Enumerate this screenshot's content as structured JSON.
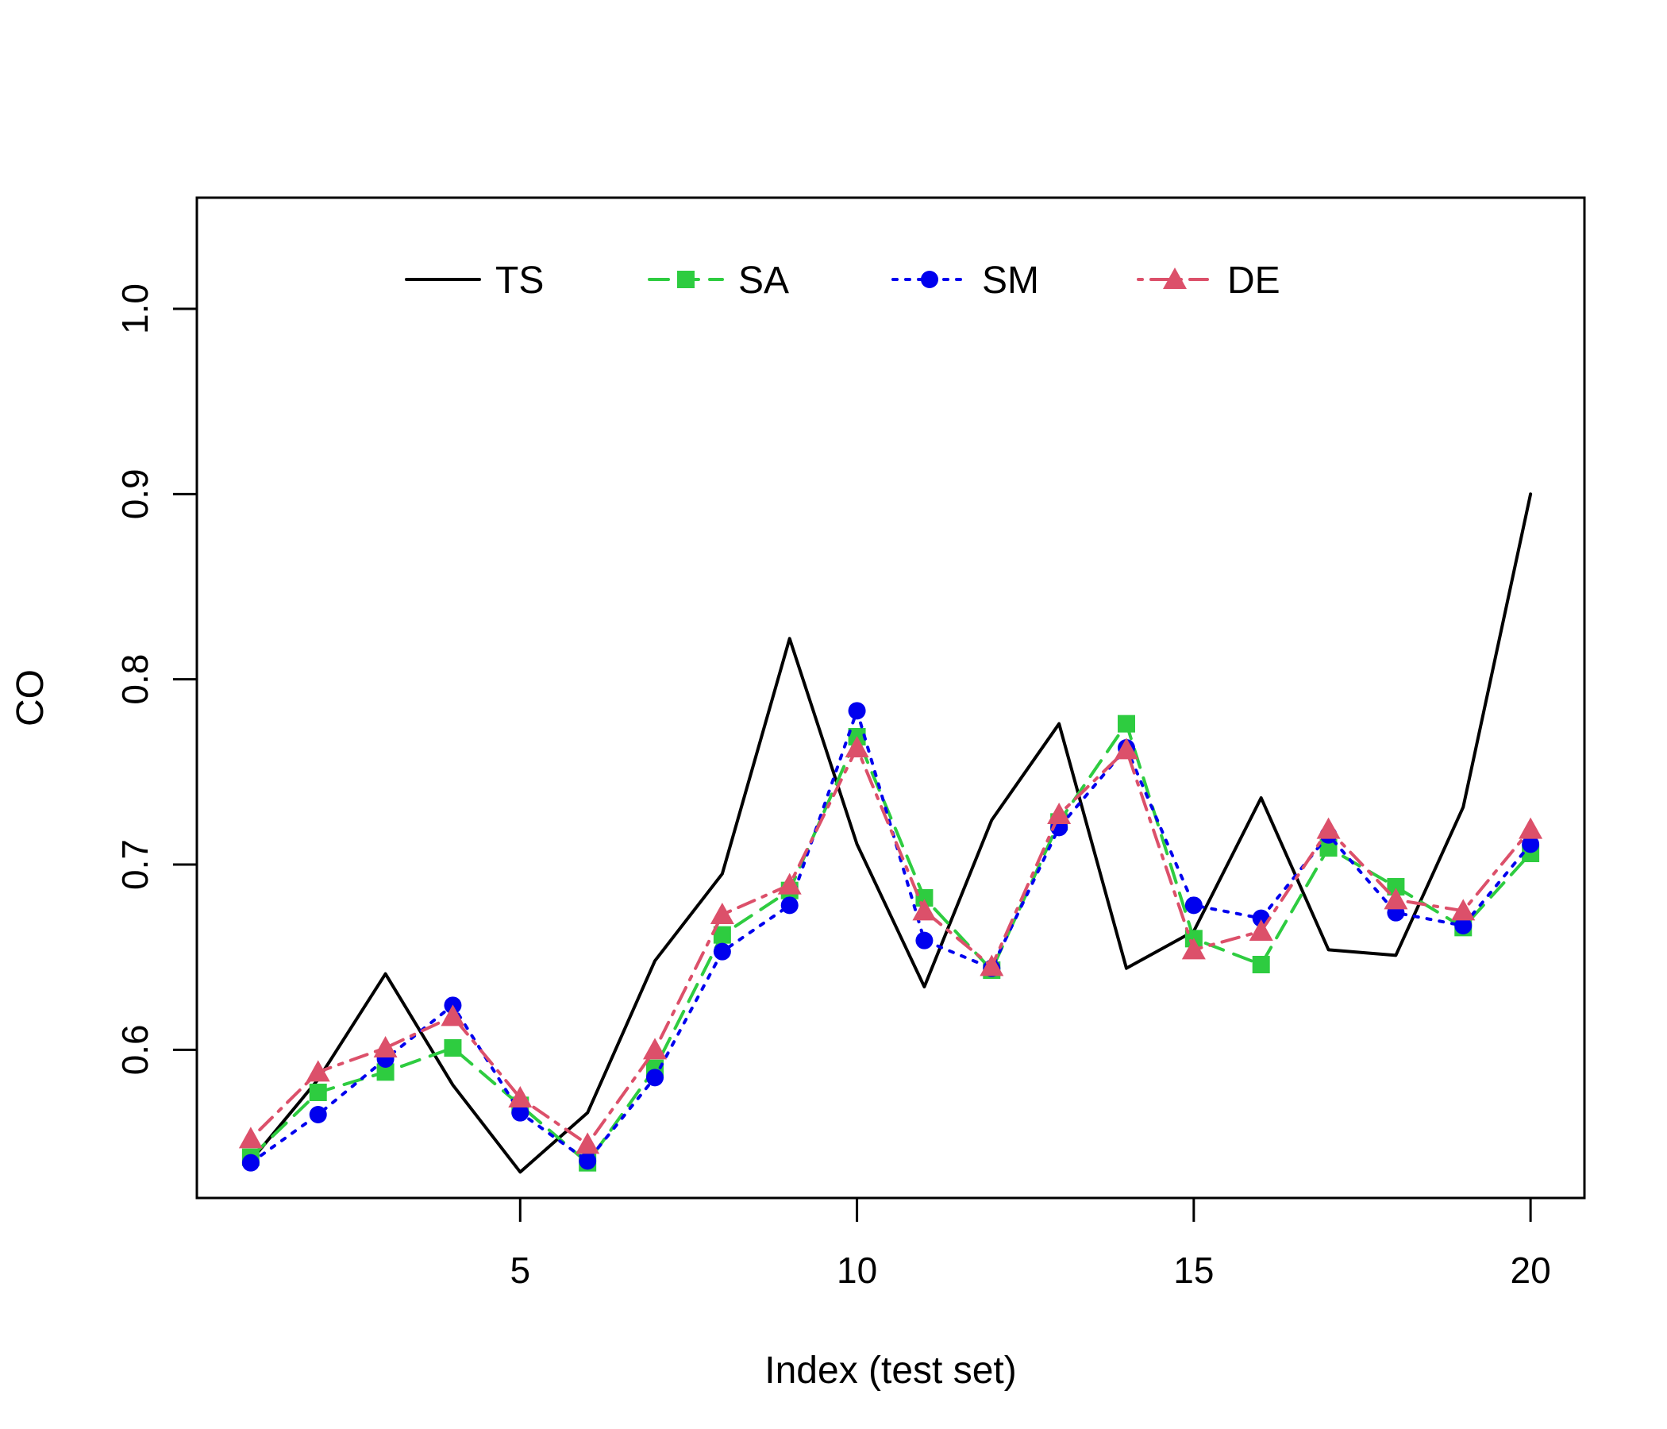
{
  "chart_data": {
    "type": "line",
    "title": "",
    "xlabel": "Index (test set)",
    "ylabel": "CO",
    "xlim": [
      0.2,
      20.8
    ],
    "ylim": [
      0.52,
      1.06
    ],
    "x_ticks": [
      5,
      10,
      15,
      20
    ],
    "x_tick_labels": [
      "5",
      "10",
      "15",
      "20"
    ],
    "y_ticks": [
      0.6,
      0.7,
      0.8,
      0.9,
      1.0
    ],
    "y_tick_labels": [
      "0.6",
      "0.7",
      "0.8",
      "0.9",
      "1.0"
    ],
    "grid": false,
    "legend_position": "top",
    "x": [
      1,
      2,
      3,
      4,
      5,
      6,
      7,
      8,
      9,
      10,
      11,
      12,
      13,
      14,
      15,
      16,
      17,
      18,
      19,
      20
    ],
    "series": [
      {
        "name": "TS",
        "color": "#000000",
        "line_style": "solid",
        "marker": "none",
        "values": [
          0.54,
          0.584,
          0.641,
          0.581,
          0.534,
          0.566,
          0.648,
          0.695,
          0.822,
          0.711,
          0.634,
          0.724,
          0.776,
          0.644,
          0.664,
          0.736,
          0.654,
          0.651,
          0.731,
          0.9
        ]
      },
      {
        "name": "SA",
        "color": "#2ecc40",
        "line_style": "dashed",
        "marker": "square",
        "values": [
          0.542,
          0.577,
          0.588,
          0.601,
          0.57,
          0.539,
          0.59,
          0.662,
          0.686,
          0.769,
          0.682,
          0.643,
          0.723,
          0.776,
          0.66,
          0.646,
          0.709,
          0.688,
          0.666,
          0.706
        ]
      },
      {
        "name": "SM",
        "color": "#0000ee",
        "line_style": "dotted",
        "marker": "circle",
        "values": [
          0.539,
          0.565,
          0.595,
          0.624,
          0.566,
          0.54,
          0.585,
          0.653,
          0.678,
          0.783,
          0.659,
          0.644,
          0.72,
          0.763,
          0.678,
          0.671,
          0.716,
          0.674,
          0.667,
          0.711
        ]
      },
      {
        "name": "DE",
        "color": "#dc506a",
        "line_style": "dotdash",
        "marker": "triangle",
        "values": [
          0.552,
          0.588,
          0.601,
          0.618,
          0.574,
          0.549,
          0.6,
          0.673,
          0.689,
          0.763,
          0.675,
          0.645,
          0.727,
          0.762,
          0.654,
          0.664,
          0.719,
          0.681,
          0.675,
          0.719
        ]
      }
    ]
  }
}
